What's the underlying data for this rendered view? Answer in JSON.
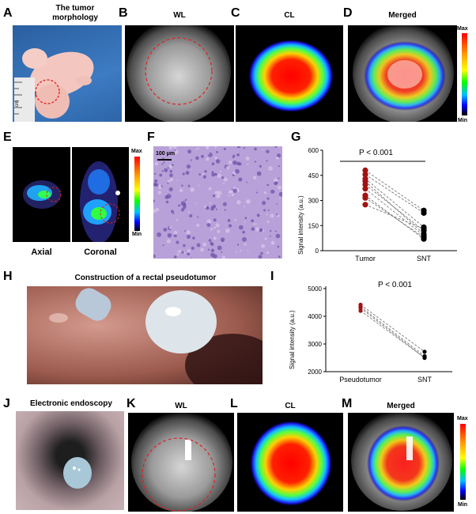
{
  "panels": {
    "A": {
      "letter": "A",
      "title_line1": "The tumor",
      "title_line2": "morphology",
      "ruler_text": "cm"
    },
    "B": {
      "letter": "B",
      "title": "WL"
    },
    "C": {
      "letter": "C",
      "title": "CL"
    },
    "D": {
      "letter": "D",
      "title": "Merged",
      "cbar_max": "Max",
      "cbar_min": "Min"
    },
    "E": {
      "letter": "E",
      "cbar_max": "Max",
      "cbar_min": "Min",
      "label_axial": "Axial",
      "label_coronal": "Coronal"
    },
    "F": {
      "letter": "F",
      "scale_text": "100 μm"
    },
    "G": {
      "letter": "G",
      "pvalue": "P < 0.001",
      "ylabel": "Signal intensity (a.u.)",
      "xcats": [
        "Tumor",
        "SNT"
      ],
      "yticks": [
        "600",
        "450",
        "300",
        "150",
        "0"
      ]
    },
    "H": {
      "letter": "H",
      "title": "Construction of a rectal pseudotumor"
    },
    "I": {
      "letter": "I",
      "pvalue": "P < 0.001",
      "ylabel": "Signal intensity (a.u.)",
      "xcats": [
        "Pseudotumor",
        "SNT"
      ],
      "yticks": [
        "5000",
        "4000",
        "3000",
        "2000"
      ]
    },
    "J": {
      "letter": "J",
      "title": "Electronic endoscopy"
    },
    "K": {
      "letter": "K",
      "title": "WL"
    },
    "L": {
      "letter": "L",
      "title": "CL"
    },
    "M": {
      "letter": "M",
      "title": "Merged",
      "cbar_max": "Max",
      "cbar_min": "Min"
    }
  },
  "chart_data": [
    {
      "type": "scatter",
      "panel": "G",
      "categories": [
        "Tumor",
        "SNT"
      ],
      "ylim": [
        0,
        600
      ],
      "pairs": [
        [
          480,
          240
        ],
        [
          455,
          225
        ],
        [
          430,
          140
        ],
        [
          415,
          100
        ],
        [
          395,
          120
        ],
        [
          370,
          90
        ],
        [
          330,
          70
        ],
        [
          315,
          80
        ],
        [
          275,
          130
        ]
      ]
    },
    {
      "type": "scatter",
      "panel": "I",
      "categories": [
        "Pseudotumor",
        "SNT"
      ],
      "ylim": [
        2000,
        5000
      ],
      "pairs": [
        [
          4420,
          2720
        ],
        [
          4350,
          2560
        ],
        [
          4300,
          2500
        ],
        [
          4200,
          2500
        ]
      ]
    }
  ],
  "colors": {
    "tumor_points": "#a11212",
    "snt_points": "#000000",
    "circle": "#e02020"
  }
}
